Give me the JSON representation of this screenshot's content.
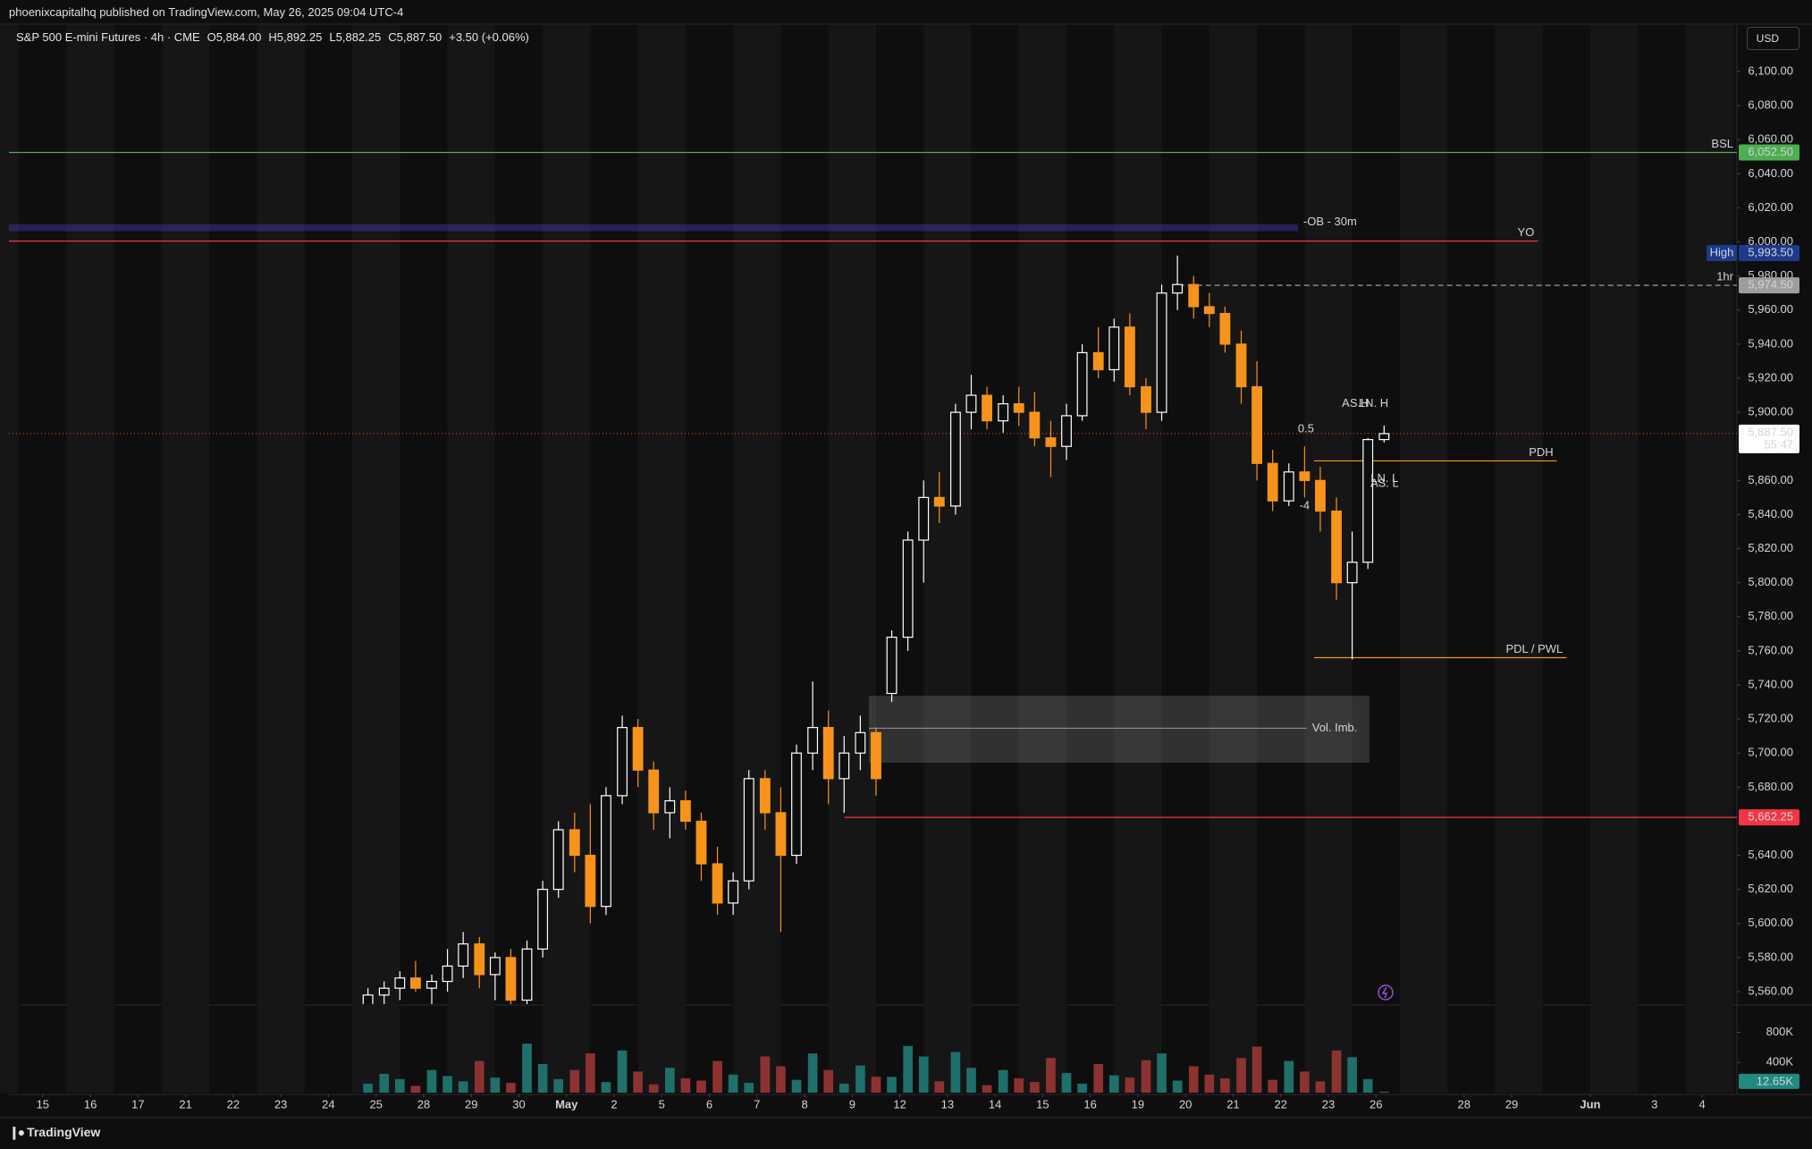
{
  "header": {
    "author": "phoenixcapitalhq published on TradingView.com, May 26, 2025 09:04 UTC-4"
  },
  "chart_data": {
    "type": "candlestick",
    "title": "S&P 500 E-mini Futures · 4h · CME",
    "ohlc_legend": [
      "O5,884.00",
      "H5,892.25",
      "L5,882.25",
      "C5,887.50",
      "+3.50 (+0.06%)"
    ],
    "currency": "USD",
    "up_color": "#ffffff",
    "down_color": "#f7931a",
    "volume_up_color": "#1f6f6a",
    "volume_down_color": "#8d3232",
    "grid": false,
    "xlim": [
      -0.71,
      35.58
    ],
    "xticks": [
      {
        "value": 0,
        "label": "15"
      },
      {
        "value": 1,
        "label": "16"
      },
      {
        "value": 2,
        "label": "17"
      },
      {
        "value": 3,
        "label": "21"
      },
      {
        "value": 4,
        "label": "22"
      },
      {
        "value": 5,
        "label": "23"
      },
      {
        "value": 6,
        "label": "24"
      },
      {
        "value": 7,
        "label": "25"
      },
      {
        "value": 8,
        "label": "28"
      },
      {
        "value": 9,
        "label": "29"
      },
      {
        "value": 10,
        "label": "30"
      },
      {
        "value": 11,
        "label": "May"
      },
      {
        "value": 12,
        "label": "2"
      },
      {
        "value": 13,
        "label": "5"
      },
      {
        "value": 14,
        "label": "6"
      },
      {
        "value": 15,
        "label": "7"
      },
      {
        "value": 16,
        "label": "8"
      },
      {
        "value": 17,
        "label": "9"
      },
      {
        "value": 18,
        "label": "12"
      },
      {
        "value": 19,
        "label": "13"
      },
      {
        "value": 20,
        "label": "14"
      },
      {
        "value": 21,
        "label": "15"
      },
      {
        "value": 22,
        "label": "16"
      },
      {
        "value": 23,
        "label": "19"
      },
      {
        "value": 24,
        "label": "20"
      },
      {
        "value": 25,
        "label": "21"
      },
      {
        "value": 26,
        "label": "22"
      },
      {
        "value": 27,
        "label": "23"
      },
      {
        "value": 28,
        "label": "26"
      },
      {
        "value": 29.85,
        "label": "28"
      },
      {
        "value": 30.85,
        "label": "29"
      },
      {
        "value": 32.5,
        "label": "Jun"
      },
      {
        "value": 33.85,
        "label": "3"
      },
      {
        "value": 34.85,
        "label": "4"
      }
    ],
    "ylim": [
      5552.65,
      6127.29
    ],
    "yticks": [
      {
        "value": 5560,
        "label": "5,560.00"
      },
      {
        "value": 5580,
        "label": "5,580.00"
      },
      {
        "value": 5600,
        "label": "5,600.00"
      },
      {
        "value": 5620,
        "label": "5,620.00"
      },
      {
        "value": 5640,
        "label": "5,640.00"
      },
      {
        "value": 5680,
        "label": "5,680.00"
      },
      {
        "value": 5700,
        "label": "5,700.00"
      },
      {
        "value": 5720,
        "label": "5,720.00"
      },
      {
        "value": 5740,
        "label": "5,740.00"
      },
      {
        "value": 5760,
        "label": "5,760.00"
      },
      {
        "value": 5780,
        "label": "5,780.00"
      },
      {
        "value": 5800,
        "label": "5,800.00"
      },
      {
        "value": 5820,
        "label": "5,820.00"
      },
      {
        "value": 5840,
        "label": "5,840.00"
      },
      {
        "value": 5860,
        "label": "5,860.00"
      },
      {
        "value": 5900,
        "label": "5,900.00"
      },
      {
        "value": 5920,
        "label": "5,920.00"
      },
      {
        "value": 5940,
        "label": "5,940.00"
      },
      {
        "value": 5960,
        "label": "5,960.00"
      },
      {
        "value": 5980,
        "label": "5,980.00"
      },
      {
        "value": 6000,
        "label": "6,000.00"
      },
      {
        "value": 6020,
        "label": "6,020.00"
      },
      {
        "value": 6040,
        "label": "6,040.00"
      },
      {
        "value": 6060,
        "label": "6,060.00"
      },
      {
        "value": 6080,
        "label": "6,080.00"
      },
      {
        "value": 6100,
        "label": "6,100.00"
      }
    ],
    "vlim": [
      0,
      1150000
    ],
    "vticks": [
      {
        "value": 400000,
        "label": "400K"
      },
      {
        "value": 800000,
        "label": "800K"
      }
    ],
    "x": [
      6.83,
      7.17,
      7.5,
      7.83,
      8.17,
      8.5,
      8.83,
      9.17,
      9.5,
      9.83,
      10.17,
      10.5,
      10.83,
      11.17,
      11.5,
      11.83,
      12.17,
      12.5,
      12.83,
      13.17,
      13.5,
      13.83,
      14.17,
      14.5,
      14.83,
      15.17,
      15.5,
      15.83,
      16.17,
      16.5,
      16.83,
      17.17,
      17.5,
      17.83,
      18.17,
      18.5,
      18.83,
      19.17,
      19.5,
      19.83,
      20.17,
      20.5,
      20.83,
      21.17,
      21.5,
      21.83,
      22.17,
      22.5,
      22.83,
      23.17,
      23.5,
      23.83,
      24.17,
      24.5,
      24.83,
      25.17,
      25.5,
      25.83,
      26.17,
      26.5,
      26.83,
      27.17,
      27.5,
      27.83,
      28.17
    ],
    "open": [
      5548,
      5558,
      5562,
      5568,
      5562,
      5566,
      5575,
      5588,
      5570,
      5580,
      5555,
      5585,
      5620,
      5655,
      5640,
      5610,
      5675,
      5715,
      5690,
      5665,
      5672,
      5660,
      5635,
      5612,
      5625,
      5685,
      5665,
      5640,
      5700,
      5715,
      5685,
      5700,
      5712,
      5735,
      5768,
      5825,
      5850,
      5845,
      5900,
      5910,
      5895,
      5905,
      5900,
      5885,
      5880,
      5898,
      5935,
      5925,
      5950,
      5915,
      5900,
      5970,
      5975,
      5962,
      5958,
      5940,
      5915,
      5870,
      5848,
      5865,
      5860,
      5842,
      5800,
      5812,
      5884
    ],
    "high": [
      5562,
      5566,
      5572,
      5578,
      5570,
      5585,
      5595,
      5592,
      5583,
      5585,
      5590,
      5625,
      5660,
      5665,
      5670,
      5680,
      5722,
      5720,
      5695,
      5680,
      5678,
      5665,
      5645,
      5630,
      5690,
      5690,
      5680,
      5705,
      5742,
      5725,
      5710,
      5722,
      5715,
      5772,
      5830,
      5860,
      5865,
      5905,
      5922,
      5915,
      5910,
      5915,
      5912,
      5895,
      5905,
      5940,
      5950,
      5955,
      5958,
      5920,
      5975,
      5992,
      5980,
      5970,
      5962,
      5948,
      5930,
      5878,
      5870,
      5880,
      5868,
      5850,
      5830,
      5885,
      5892.25
    ],
    "low": [
      5540,
      5550,
      5555,
      5560,
      5548,
      5560,
      5568,
      5562,
      5555,
      5540,
      5530,
      5580,
      5615,
      5630,
      5600,
      5605,
      5670,
      5680,
      5655,
      5650,
      5655,
      5625,
      5605,
      5605,
      5620,
      5655,
      5595,
      5635,
      5690,
      5670,
      5665,
      5690,
      5675,
      5730,
      5760,
      5800,
      5835,
      5840,
      5890,
      5890,
      5888,
      5892,
      5880,
      5862,
      5872,
      5895,
      5920,
      5918,
      5910,
      5890,
      5895,
      5960,
      5955,
      5950,
      5935,
      5905,
      5860,
      5842,
      5845,
      5850,
      5830,
      5790,
      5755,
      5808,
      5882.25
    ],
    "close": [
      5558,
      5562,
      5568,
      5562,
      5566,
      5575,
      5588,
      5570,
      5580,
      5555,
      5585,
      5620,
      5655,
      5640,
      5610,
      5675,
      5715,
      5690,
      5665,
      5672,
      5660,
      5635,
      5612,
      5625,
      5685,
      5665,
      5640,
      5700,
      5715,
      5685,
      5700,
      5712,
      5685,
      5768,
      5825,
      5850,
      5845,
      5900,
      5910,
      5895,
      5905,
      5900,
      5885,
      5880,
      5898,
      5935,
      5925,
      5950,
      5915,
      5900,
      5970,
      5975,
      5962,
      5958,
      5940,
      5915,
      5870,
      5848,
      5865,
      5860,
      5842,
      5800,
      5812,
      5884,
      5887.5
    ],
    "volume": [
      120000,
      250000,
      180000,
      90000,
      300000,
      220000,
      150000,
      420000,
      200000,
      130000,
      650000,
      380000,
      180000,
      300000,
      520000,
      140000,
      560000,
      280000,
      110000,
      330000,
      190000,
      160000,
      420000,
      240000,
      130000,
      480000,
      350000,
      170000,
      520000,
      300000,
      120000,
      360000,
      210000,
      210000,
      620000,
      480000,
      150000,
      540000,
      330000,
      100000,
      300000,
      190000,
      140000,
      460000,
      260000,
      120000,
      380000,
      230000,
      200000,
      430000,
      520000,
      160000,
      350000,
      240000,
      190000,
      460000,
      610000,
      170000,
      420000,
      280000,
      150000,
      560000,
      470000,
      180000,
      12650
    ],
    "volume_last": {
      "value": 12650,
      "label": "12.65K"
    },
    "last_price": {
      "value": 5887.5,
      "label": "5,887.50",
      "countdown": "55:47",
      "color": "#e0603a"
    },
    "levels": [
      {
        "name": "BSL",
        "value": 6052.5,
        "label": "6,052.50",
        "color": "#4caf50",
        "x0": -0.71,
        "x1": 35.58,
        "style": "solid"
      },
      {
        "name": "YO",
        "value": 6000.5,
        "color": "#f23645",
        "x0": -0.71,
        "x1": 31.4,
        "style": "solid"
      },
      {
        "name": "High",
        "value": 5993.5,
        "label": "5,993.50",
        "color": "#1e3a8a"
      },
      {
        "name": "1hr",
        "value": 5974.5,
        "label": "5,974.50",
        "color": "#9e9e9e",
        "x0": 23.86,
        "x1": 35.58,
        "style": "dashed"
      },
      {
        "name": "PDH",
        "value": 5871.5,
        "color": "#f7931a",
        "x0": 26.7,
        "x1": 31.8,
        "style": "solid"
      },
      {
        "name": "PDL / PWL",
        "value": 5756,
        "color": "#f7931a",
        "x0": 26.7,
        "x1": 32.0,
        "style": "solid"
      },
      {
        "value": 5662.25,
        "label": "5,662.25",
        "color": "#f23645",
        "x0": 16.84,
        "x1": 35.58,
        "style": "solid"
      }
    ],
    "zones": [
      {
        "name": "-OB - 30m",
        "low": 6006.3,
        "high": 6010.4,
        "x0": -0.71,
        "x1": 26.36,
        "color": "#4a35a8"
      },
      {
        "name": "Vol. Imb.",
        "low": 5694.3,
        "high": 5733.6,
        "mid": 5714.6,
        "x0": 17.35,
        "x1": 27.86,
        "color": "#ffffff"
      }
    ],
    "annotations": [
      {
        "text": "AS.H",
        "x": 27.57,
        "y": 5905,
        "color": "#5b6ee1"
      },
      {
        "text": "LN. H",
        "x": 27.95,
        "y": 5905,
        "color": "#9c4fd6"
      },
      {
        "text": "0.5",
        "x": 26.53,
        "y": 5890,
        "color": "#8a8a8a"
      },
      {
        "text": "LN. L",
        "x": 28.18,
        "y": 5861,
        "color": "#9c4fd6"
      },
      {
        "text": "AS. L",
        "x": 28.18,
        "y": 5858,
        "color": "#5b6ee1"
      },
      {
        "text": "-4",
        "x": 26.5,
        "y": 5845,
        "color": "#8a8a8a"
      }
    ]
  },
  "footer": {
    "brand": "TradingView"
  }
}
